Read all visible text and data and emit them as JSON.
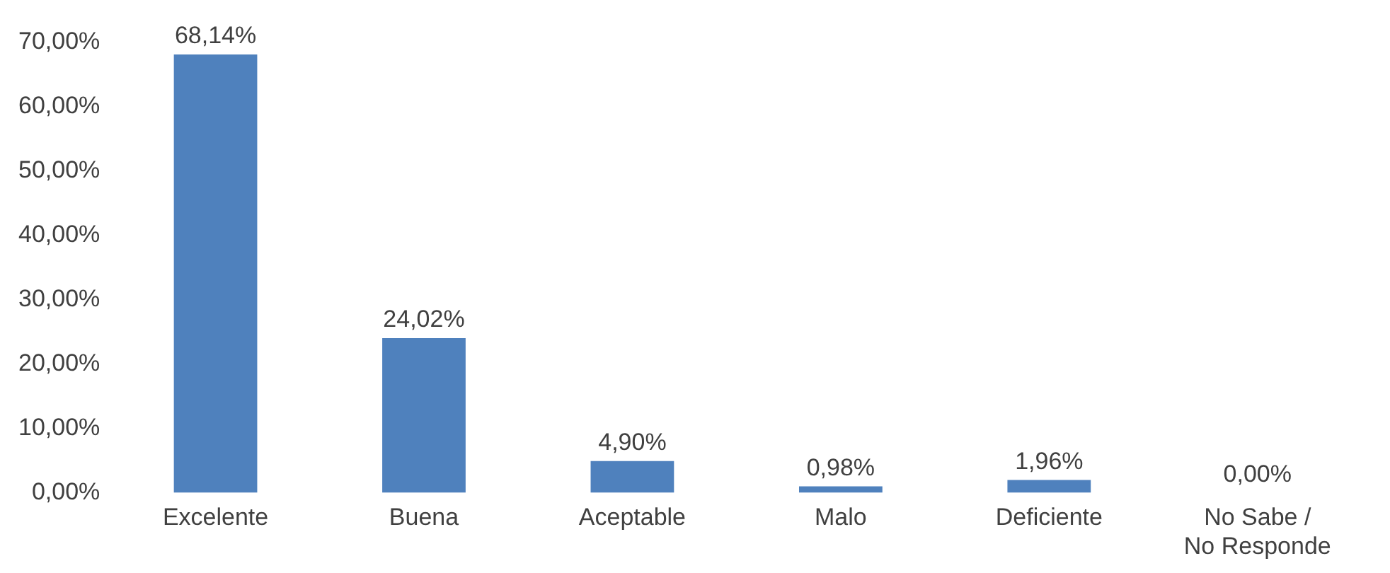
{
  "chart_data": {
    "type": "bar",
    "categories": [
      "Excelente",
      "Buena",
      "Aceptable",
      "Malo",
      "Deficiente",
      "No Sabe / No Responde"
    ],
    "values": [
      68.14,
      24.02,
      4.9,
      0.98,
      1.96,
      0
    ],
    "value_labels": [
      "68,14%",
      "24,02%",
      "4,90%",
      "0,98%",
      "1,96%",
      "0,00%"
    ],
    "color": "#4f81bd",
    "ylim": [
      0,
      70
    ],
    "yticks": [
      {
        "value": 0,
        "label": "0,00%"
      },
      {
        "value": 10,
        "label": "10,00%"
      },
      {
        "value": 20,
        "label": "20,00%"
      },
      {
        "value": 30,
        "label": "30,00%"
      },
      {
        "value": 40,
        "label": "40,00%"
      },
      {
        "value": 50,
        "label": "50,00%"
      },
      {
        "value": 60,
        "label": "60,00%"
      },
      {
        "value": 70,
        "label": "70,00%"
      }
    ],
    "grid": false,
    "legend": false
  }
}
